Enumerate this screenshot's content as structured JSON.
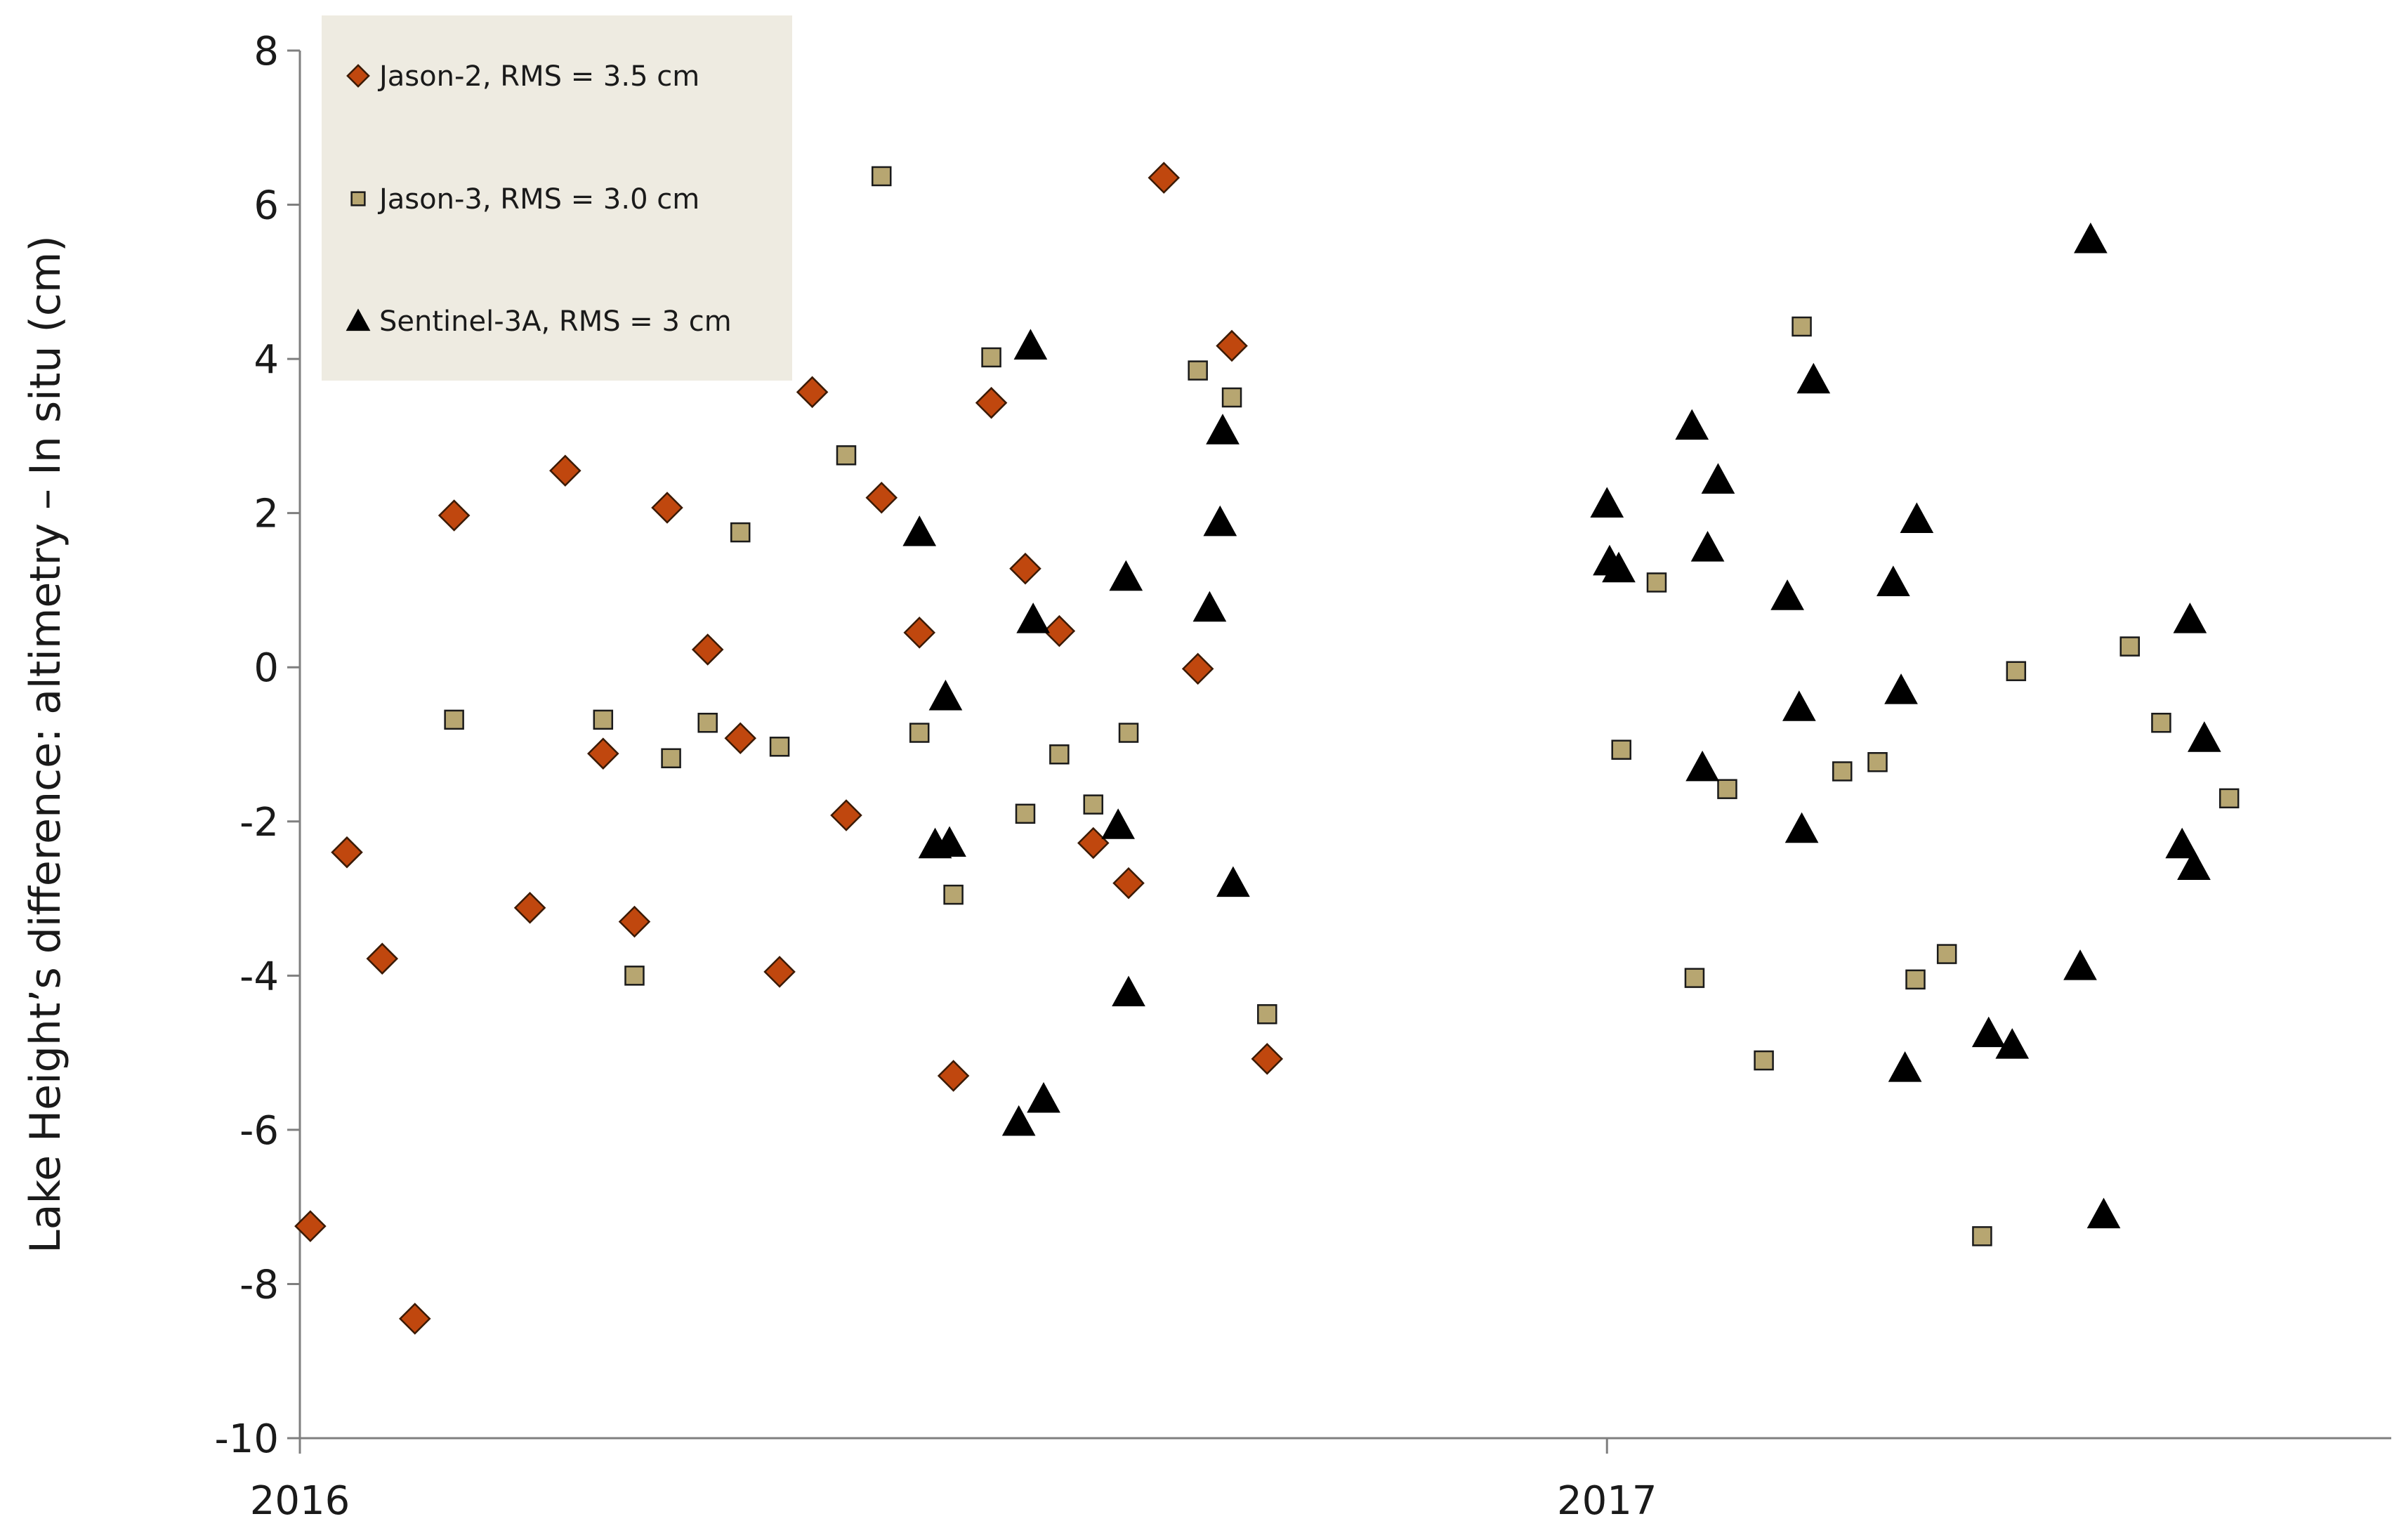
{
  "chart_data": {
    "type": "scatter",
    "title": "",
    "xlabel": "",
    "ylabel": "Lake Height’s difference: altimetry – In situ (cm)",
    "xlim": [
      2016.0,
      2017.6
    ],
    "ylim": [
      -10,
      8
    ],
    "yticks": [
      8,
      6,
      4,
      2,
      0,
      -2,
      -4,
      -6,
      -8,
      -10
    ],
    "xticks": [
      {
        "value": 2016.0,
        "label": "2016"
      },
      {
        "value": 2017.0,
        "label": "2017"
      }
    ],
    "grid": false,
    "legend_position": "top-left",
    "series": [
      {
        "name": "Jason-2, RMS = 3.5 cm",
        "marker": "diamond",
        "color": "#c0470e",
        "points": [
          [
            2016.008,
            -7.25
          ],
          [
            2016.036,
            -2.4
          ],
          [
            2016.063,
            -3.78
          ],
          [
            2016.088,
            -8.45
          ],
          [
            2016.118,
            1.97
          ],
          [
            2016.176,
            -3.12
          ],
          [
            2016.203,
            2.55
          ],
          [
            2016.232,
            -1.12
          ],
          [
            2016.256,
            -3.3
          ],
          [
            2016.281,
            2.07
          ],
          [
            2016.312,
            0.23
          ],
          [
            2016.337,
            -0.92
          ],
          [
            2016.367,
            -3.95
          ],
          [
            2016.392,
            3.57
          ],
          [
            2016.418,
            -1.92
          ],
          [
            2016.445,
            2.2
          ],
          [
            2016.474,
            0.45
          ],
          [
            2016.5,
            -5.3
          ],
          [
            2016.529,
            3.43
          ],
          [
            2016.555,
            1.28
          ],
          [
            2016.581,
            0.47
          ],
          [
            2016.607,
            -2.28
          ],
          [
            2016.634,
            -2.8
          ],
          [
            2016.661,
            6.35
          ],
          [
            2016.687,
            -0.02
          ],
          [
            2016.713,
            4.17
          ],
          [
            2016.74,
            -5.08
          ]
        ]
      },
      {
        "name": "Jason-3, RMS = 3.0 cm",
        "marker": "square",
        "color": "#b7a671",
        "points": [
          [
            2016.118,
            -0.68
          ],
          [
            2016.232,
            -0.68
          ],
          [
            2016.256,
            -4.0
          ],
          [
            2016.284,
            -1.18
          ],
          [
            2016.312,
            -0.72
          ],
          [
            2016.337,
            1.75
          ],
          [
            2016.367,
            -1.03
          ],
          [
            2016.418,
            2.75
          ],
          [
            2016.445,
            6.37
          ],
          [
            2016.474,
            -0.85
          ],
          [
            2016.5,
            -2.95
          ],
          [
            2016.529,
            4.02
          ],
          [
            2016.555,
            -1.9
          ],
          [
            2016.581,
            -1.13
          ],
          [
            2016.607,
            -1.78
          ],
          [
            2016.634,
            -0.85
          ],
          [
            2016.687,
            3.85
          ],
          [
            2016.713,
            3.5
          ],
          [
            2016.74,
            -4.5
          ],
          [
            2017.011,
            -1.07
          ],
          [
            2017.038,
            1.1
          ],
          [
            2017.067,
            -4.03
          ],
          [
            2017.092,
            -1.58
          ],
          [
            2017.12,
            -5.1
          ],
          [
            2017.149,
            4.42
          ],
          [
            2017.18,
            -1.35
          ],
          [
            2017.207,
            -1.23
          ],
          [
            2017.236,
            -4.05
          ],
          [
            2017.26,
            -3.72
          ],
          [
            2017.287,
            -7.38
          ],
          [
            2017.313,
            -0.05
          ],
          [
            2017.4,
            0.27
          ],
          [
            2017.424,
            -0.72
          ],
          [
            2017.476,
            -1.7
          ]
        ]
      },
      {
        "name": "Sentinel-3A, RMS = 3 cm",
        "marker": "triangle",
        "color": "#000000",
        "points": [
          [
            2016.474,
            1.75
          ],
          [
            2016.486,
            -2.3
          ],
          [
            2016.494,
            -0.38
          ],
          [
            2016.497,
            -2.28
          ],
          [
            2016.55,
            -5.9
          ],
          [
            2016.559,
            4.17
          ],
          [
            2016.561,
            0.62
          ],
          [
            2016.569,
            -5.6
          ],
          [
            2016.626,
            -2.05
          ],
          [
            2016.632,
            1.17
          ],
          [
            2016.634,
            -4.22
          ],
          [
            2016.696,
            0.77
          ],
          [
            2016.704,
            1.88
          ],
          [
            2016.706,
            3.07
          ],
          [
            2016.714,
            -2.8
          ],
          [
            2017.0,
            2.12
          ],
          [
            2017.002,
            1.37
          ],
          [
            2017.009,
            1.28
          ],
          [
            2017.065,
            3.13
          ],
          [
            2017.073,
            -1.3
          ],
          [
            2017.077,
            1.55
          ],
          [
            2017.085,
            2.43
          ],
          [
            2017.138,
            0.92
          ],
          [
            2017.147,
            -0.52
          ],
          [
            2017.149,
            -2.1
          ],
          [
            2017.158,
            3.73
          ],
          [
            2017.219,
            1.1
          ],
          [
            2017.225,
            -0.3
          ],
          [
            2017.228,
            -5.2
          ],
          [
            2017.237,
            1.92
          ],
          [
            2017.292,
            -4.75
          ],
          [
            2017.31,
            -4.9
          ],
          [
            2017.362,
            -3.88
          ],
          [
            2017.37,
            5.55
          ],
          [
            2017.38,
            -7.1
          ],
          [
            2017.44,
            -2.3
          ],
          [
            2017.446,
            0.62
          ],
          [
            2017.449,
            -2.58
          ],
          [
            2017.457,
            -0.92
          ]
        ]
      }
    ]
  }
}
